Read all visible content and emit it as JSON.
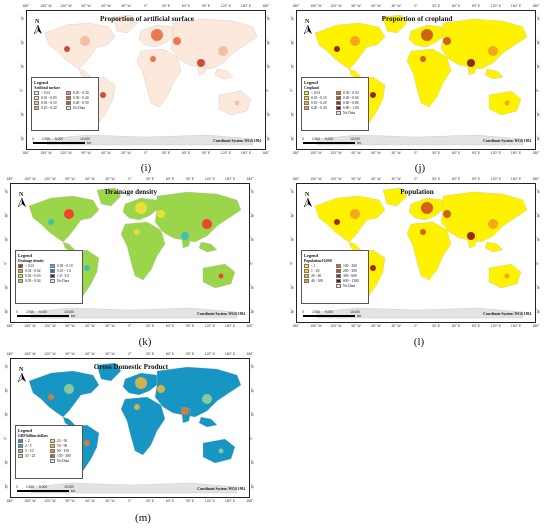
{
  "longitude_ticks": [
    "180°",
    "150° W",
    "120° W",
    "90° W",
    "60° W",
    "30° W",
    "0°",
    "30° E",
    "60° E",
    "90° E",
    "120° E",
    "150° E",
    "180°"
  ],
  "latitude_ticks": [
    "90°",
    "60°",
    "30°",
    "0°",
    "30°",
    "60°"
  ],
  "scale": {
    "labels": [
      "0",
      "2,500",
      "5,000",
      "10,000"
    ],
    "unit": "km"
  },
  "coordinate_system": "Coordinate System: WGS 1984",
  "north_label": "N",
  "panels": [
    {
      "id": "i",
      "caption": "(i)",
      "title": "Proportion of artificial surface",
      "legend_title": "Legend",
      "legend_subtitle": "Artificial surface",
      "land_color": "#fde9dc",
      "hotspot_colors": [
        "#f7b69a",
        "#e7633b",
        "#c0341a"
      ],
      "legend_items": [
        {
          "label": "< 0.01",
          "color": "#fde9dc"
        },
        {
          "label": "0.20 - 0.30",
          "color": "#f08a63"
        },
        {
          "label": "0.01 - 0.03",
          "color": "#fbd3bf"
        },
        {
          "label": "0.30 - 0.40",
          "color": "#e7633b"
        },
        {
          "label": "0.03 - 0.10",
          "color": "#f9bfa4"
        },
        {
          "label": "0.40 - 0.50",
          "color": "#d44a28"
        },
        {
          "label": "0.10 - 0.20",
          "color": "#f5a27f"
        },
        {
          "label": "No Data",
          "color": "#e3e3e3"
        }
      ]
    },
    {
      "id": "j",
      "caption": "(j)",
      "title": "Proportion of cropland",
      "legend_title": "Legend",
      "legend_subtitle": "Cropland",
      "land_color": "#fff200",
      "hotspot_colors": [
        "#f29a1e",
        "#c8481a",
        "#7d0a0a"
      ],
      "legend_items": [
        {
          "label": "< 0.01",
          "color": "#fff200"
        },
        {
          "label": "0.30 - 0.50",
          "color": "#e0651c"
        },
        {
          "label": "0.01 - 0.10",
          "color": "#ffd11a"
        },
        {
          "label": "0.40 - 0.60",
          "color": "#c8481a"
        },
        {
          "label": "0.10 - 0.20",
          "color": "#fcb020"
        },
        {
          "label": "0.60 - 0.80",
          "color": "#a22c14"
        },
        {
          "label": "0.20 - 0.30",
          "color": "#f29a1e"
        },
        {
          "label": "0.80 - 1.00",
          "color": "#7d0a0a"
        },
        {
          "label": "",
          "color": "#ffffff"
        },
        {
          "label": "No Data",
          "color": "#e3e3e3"
        }
      ]
    },
    {
      "id": "k",
      "caption": "(k)",
      "title": "Drainage density",
      "legend_title": "Legend",
      "legend_subtitle": "Drainage density",
      "land_color": "#9ad54a",
      "hotspot_colors": [
        "#ff2a2a",
        "#f7e03a",
        "#2fbdc4"
      ],
      "legend_items": [
        {
          "label": "< 0.01",
          "color": "#e41a1c"
        },
        {
          "label": "0.03 - 0.10",
          "color": "#43c4c4"
        },
        {
          "label": "0.01 - 0.02",
          "color": "#f4a020"
        },
        {
          "label": "0.10 - 1.0",
          "color": "#2b6fd0"
        },
        {
          "label": "0.02 - 0.03",
          "color": "#f7e03a"
        },
        {
          "label": "1.0 - 5.0",
          "color": "#1a2ea0"
        },
        {
          "label": "0.03 - 0.04",
          "color": "#9ad54a"
        },
        {
          "label": "No Data",
          "color": "#e3e3e3"
        }
      ]
    },
    {
      "id": "l",
      "caption": "(l)",
      "title": "Population",
      "legend_title": "Legend",
      "legend_subtitle": "Population/10,000",
      "land_color": "#fff200",
      "hotspot_colors": [
        "#f29a1e",
        "#c8481a",
        "#8a0a0a"
      ],
      "legend_items": [
        {
          "label": "< 1",
          "color": "#fff200"
        },
        {
          "label": "100 - 200",
          "color": "#e0651c"
        },
        {
          "label": "1 - 20",
          "color": "#ffd11a"
        },
        {
          "label": "200 - 300",
          "color": "#c8481a"
        },
        {
          "label": "20 - 40",
          "color": "#fcb020"
        },
        {
          "label": "300 - 600",
          "color": "#a22c14"
        },
        {
          "label": "40 - 100",
          "color": "#f29a1e"
        },
        {
          "label": "600 - 1300",
          "color": "#7d0a0a"
        },
        {
          "label": "",
          "color": "#ffffff"
        },
        {
          "label": "No Data",
          "color": "#e3e3e3"
        }
      ]
    },
    {
      "id": "m",
      "caption": "(m)",
      "title": "Gross Domestic Product",
      "legend_title": "Legend",
      "legend_subtitle": "GDP/billion dollars",
      "land_color": "#1796c4",
      "hotspot_colors": [
        "#9ed29a",
        "#f2b53a",
        "#f07a2a"
      ],
      "legend_items": [
        {
          "label": "< 2",
          "color": "#1796c4"
        },
        {
          "label": "23 - 50",
          "color": "#f2e54a"
        },
        {
          "label": "2 - 5",
          "color": "#39aeb6"
        },
        {
          "label": "50 - 90",
          "color": "#f2b53a"
        },
        {
          "label": "5 - 10",
          "color": "#7cc59a"
        },
        {
          "label": "90 - 150",
          "color": "#f08a2a"
        },
        {
          "label": "10 - 23",
          "color": "#c6e07a"
        },
        {
          "label": "150 - 300",
          "color": "#d9531e"
        },
        {
          "label": "",
          "color": "#ffffff"
        },
        {
          "label": "No Data",
          "color": "#e3e3e3"
        }
      ]
    }
  ]
}
